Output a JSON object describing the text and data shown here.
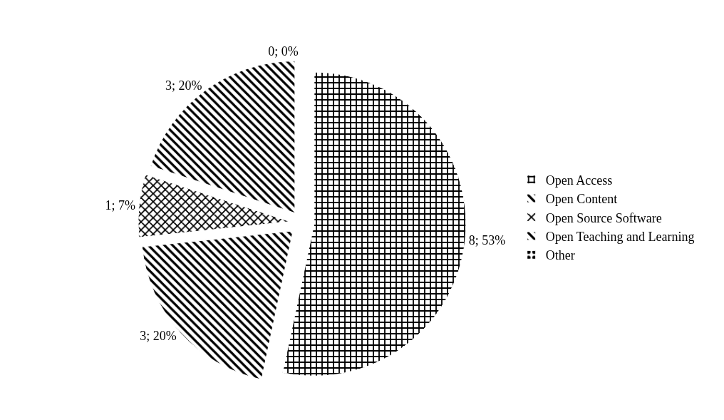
{
  "chart_data": {
    "type": "pie",
    "categories": [
      "Open Access",
      "Open Content",
      "Open Source Software",
      "Open Teaching and Learning",
      "Other"
    ],
    "values": [
      8,
      3,
      1,
      3,
      0
    ],
    "value_labels": [
      "8; 53%",
      "3; 20%",
      "1; 7%",
      "3; 20%",
      "0; 0%"
    ],
    "colors": [
      "#ffffff",
      "#ffffff",
      "#ffffff",
      "#ffffff",
      "#ffffff"
    ],
    "legend": "right"
  }
}
